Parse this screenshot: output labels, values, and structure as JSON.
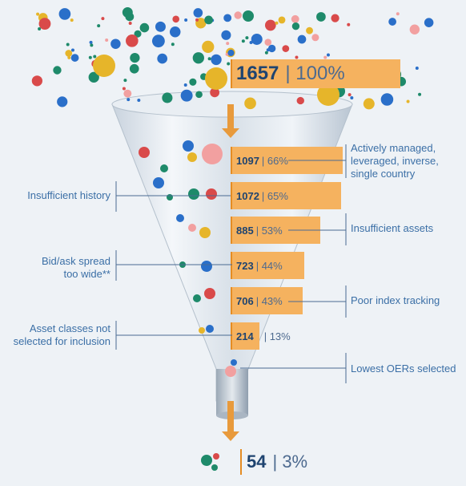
{
  "stages": [
    {
      "count": "1657",
      "percent": "100%"
    },
    {
      "count": "1097",
      "percent": "66%"
    },
    {
      "count": "1072",
      "percent": "65%"
    },
    {
      "count": "885",
      "percent": "53%"
    },
    {
      "count": "723",
      "percent": "44%"
    },
    {
      "count": "706",
      "percent": "43%"
    },
    {
      "count": "214",
      "percent": "13%"
    },
    {
      "count": "54",
      "percent": "3%"
    }
  ],
  "right_labels": {
    "leveraged": [
      "Actively managed,",
      "leveraged, inverse,",
      "single country"
    ],
    "assets": "Insufficient assets",
    "tracking": "Poor index tracking",
    "oer": "Lowest OERs selected"
  },
  "left_labels": {
    "history": "Insufficient history",
    "spread": [
      "Bid/ask spread",
      "too wide**"
    ],
    "asset_classes": [
      "Asset classes not",
      "selected for inclusion"
    ]
  },
  "colors": {
    "bar": "#f5b25f",
    "bar_rule": "#e58c23",
    "text_dark": "#1f4470",
    "label": "#3b6fa6",
    "line": "#4a6b93",
    "ball_red": "#d94a4a",
    "ball_teal": "#1e8a6a",
    "ball_blue": "#2a6fc9",
    "ball_gold": "#e6b52a",
    "ball_pink": "#f2a0a0"
  }
}
